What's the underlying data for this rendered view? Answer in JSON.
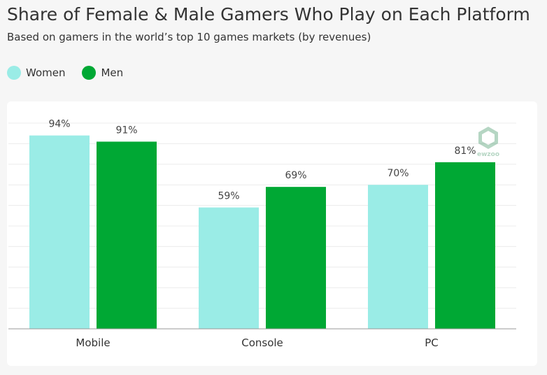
{
  "title": "Share of Female & Male Gamers Who Play on Each Platform",
  "subtitle": "Based on gamers in the world’s top 10 games markets (by revenues)",
  "legend": {
    "women": {
      "label": "Women",
      "color": "#9aece6"
    },
    "men": {
      "label": "Men",
      "color": "#00a834"
    }
  },
  "watermark": {
    "text": "ewzoo"
  },
  "chart_data": {
    "type": "bar",
    "categories": [
      "Mobile",
      "Console",
      "PC"
    ],
    "series": [
      {
        "name": "Women",
        "values": [
          94,
          59,
          70
        ],
        "labels": [
          "94%",
          "59%",
          "70%"
        ],
        "color": "#9aece6"
      },
      {
        "name": "Men",
        "values": [
          91,
          69,
          81
        ],
        "labels": [
          "91%",
          "69%",
          "81%"
        ],
        "color": "#00a834"
      }
    ],
    "ylim": [
      0,
      100
    ],
    "grid": true,
    "legend_position": "top-left",
    "xlabel": "",
    "ylabel": ""
  }
}
